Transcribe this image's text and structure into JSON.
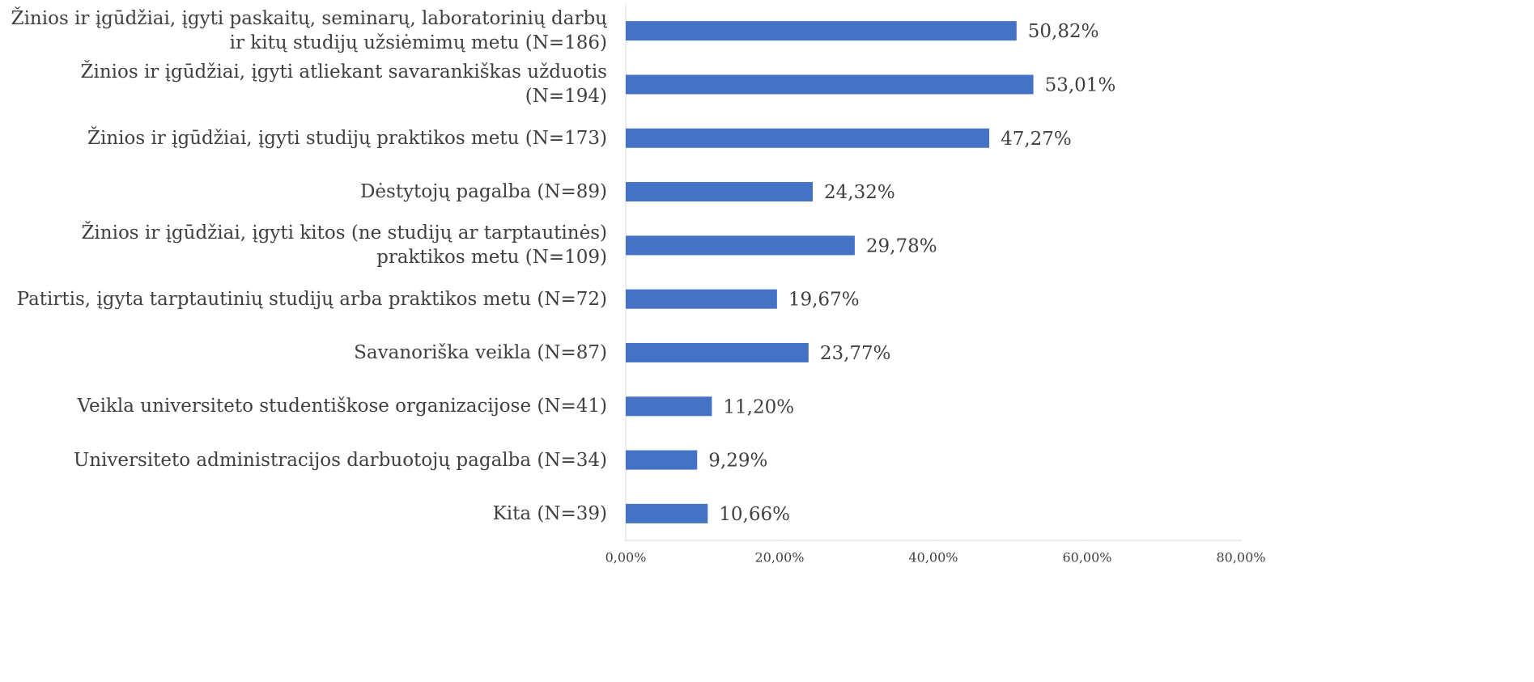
{
  "chart_data": {
    "type": "bar",
    "orientation": "horizontal",
    "categories": [
      "Žinios ir įgūdžiai, įgyti paskaitų, seminarų, laboratorinių darbų ir kitų studijų užsiėmimų metu (N=186)",
      "Žinios ir įgūdžiai, įgyti atliekant savarankiškas užduotis (N=194)",
      "Žinios ir įgūdžiai, įgyti studijų praktikos metu (N=173)",
      "Dėstytojų pagalba (N=89)",
      "Žinios ir įgūdžiai, įgyti kitos (ne studijų ar tarptautinės) praktikos metu (N=109)",
      "Patirtis, įgyta tarptautinių studijų arba praktikos metu (N=72)",
      "Savanoriška veikla (N=87)",
      "Veikla universiteto studentiškose organizacijose (N=41)",
      "Universiteto administracijos darbuotojų pagalba (N=34)",
      "Kita (N=39)"
    ],
    "values": [
      50.82,
      53.01,
      47.27,
      24.32,
      29.78,
      19.67,
      23.77,
      11.2,
      9.29,
      10.66
    ],
    "value_labels": [
      "50,82%",
      "53,01%",
      "47,27%",
      "24,32%",
      "29,78%",
      "19,67%",
      "23,77%",
      "11,20%",
      "9,29%",
      "10,66%"
    ],
    "color": "#4472c4",
    "xlim": [
      0,
      80
    ],
    "xticks": [
      {
        "value": 0,
        "label": "0,00%"
      },
      {
        "value": 20,
        "label": "20,00%"
      },
      {
        "value": 40,
        "label": "40,00%"
      },
      {
        "value": 60,
        "label": "60,00%"
      },
      {
        "value": 80,
        "label": "80,00%"
      }
    ]
  }
}
